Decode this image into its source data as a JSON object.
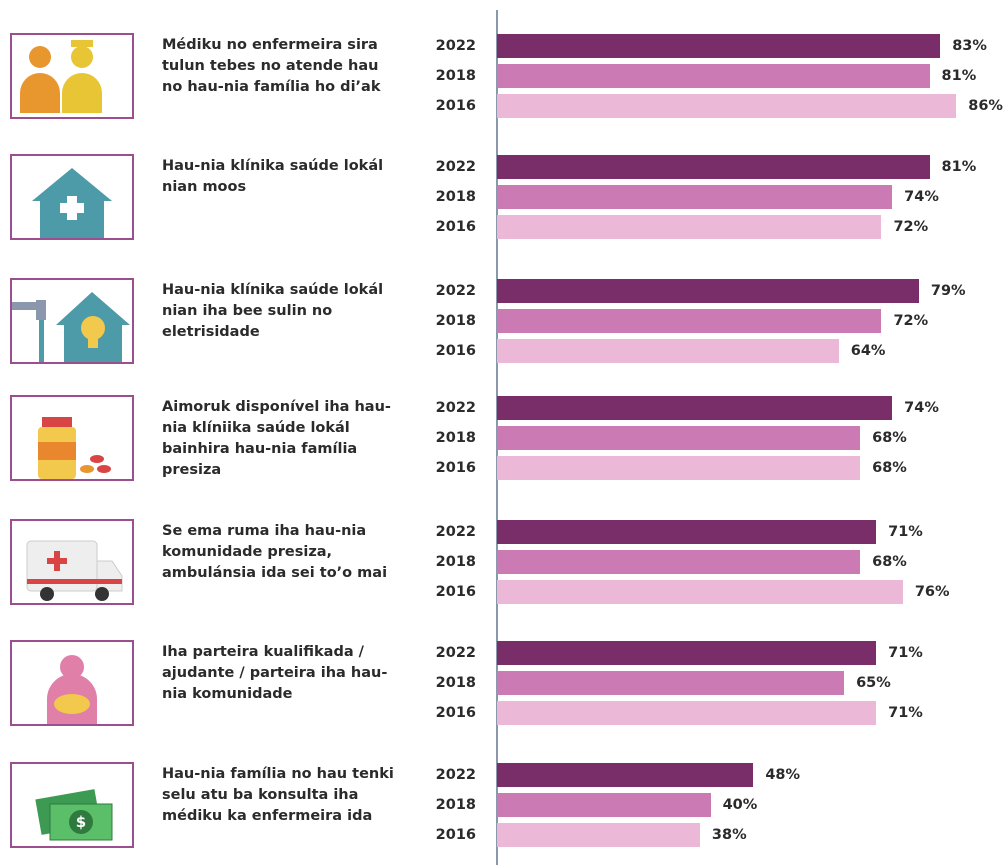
{
  "chart_data": {
    "type": "bar",
    "categories": [
      "Médiku no enfermeira sira tulun tebes no atende hau no hau-nia família ho di’ak",
      "Hau-nia klínika saúde lokál nian moos",
      "Hau-nia klínika saúde lokál nian iha bee sulin no eletrisidade",
      "Aimoruk disponível iha hau-nia klíniika saúde lokál bainhira hau-nia família presiza",
      "Se ema ruma iha hau-nia komunidade presiza, ambulánsia ida sei to’o mai",
      "Iha parteira kualifikada / ajudante / parteira iha hau-nia komunidade",
      "Hau-nia família no hau tenki selu atu ba konsulta iha médiku ka enfermeira ida"
    ],
    "series": [
      {
        "name": "2022",
        "color": "#7a2e69",
        "values": [
          83,
          81,
          79,
          74,
          71,
          71,
          48
        ],
        "value_labels": [
          "83%",
          "81%",
          "79%",
          "74%",
          "71%",
          "71%",
          "48%"
        ]
      },
      {
        "name": "2018",
        "color": "#cc7ab4",
        "values": [
          81,
          74,
          72,
          68,
          68,
          65,
          40
        ],
        "value_labels": [
          "81%",
          "74%",
          "72%",
          "68%",
          "68%",
          "65%",
          "40%"
        ]
      },
      {
        "name": "2016",
        "color": "#ecb8d7",
        "values": [
          86,
          72,
          64,
          68,
          76,
          71,
          38
        ],
        "value_labels": [
          "86%",
          "72%",
          "64%",
          "68%",
          "76%",
          "71%",
          "38%"
        ]
      }
    ]
  }
}
